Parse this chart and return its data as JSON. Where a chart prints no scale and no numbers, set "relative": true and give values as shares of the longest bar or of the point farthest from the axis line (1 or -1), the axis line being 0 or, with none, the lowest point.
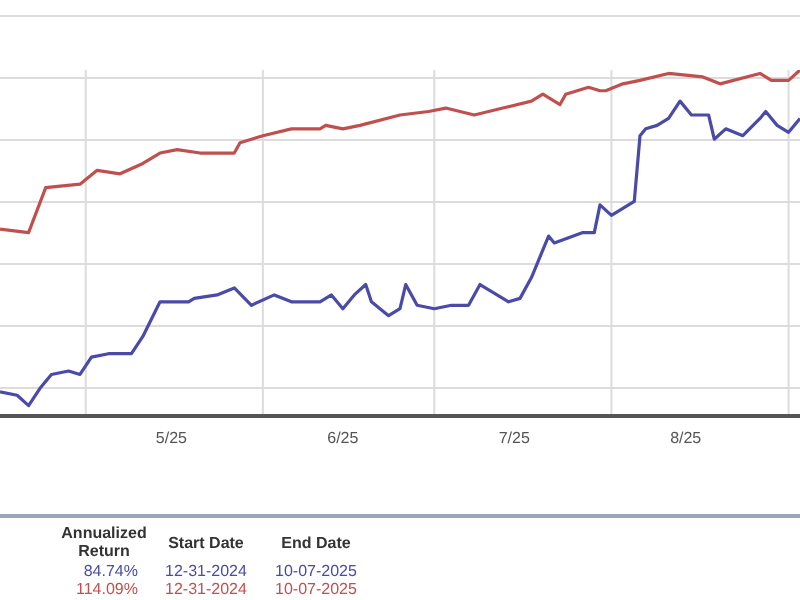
{
  "chart_data": {
    "type": "line",
    "relative": true,
    "grid": true,
    "legend": false,
    "marker": "none",
    "line_style": "solid",
    "xlim": [
      "2025-04-16",
      "2025-09-03"
    ],
    "xticks": [
      {
        "value": "2025-05-01",
        "label": null
      },
      {
        "value": "2025-05-16",
        "label": "5/25"
      },
      {
        "value": "2025-06-01",
        "label": null
      },
      {
        "value": "2025-06-15",
        "label": "6/25"
      },
      {
        "value": "2025-07-01",
        "label": null
      },
      {
        "value": "2025-07-15",
        "label": "7/25"
      },
      {
        "value": "2025-08-01",
        "label": null
      },
      {
        "value": "2025-08-14",
        "label": "8/25"
      },
      {
        "value": "2025-09-01",
        "label": null
      }
    ],
    "series": [
      {
        "color": "#4a4aa8",
        "x": [
          "2025-04-16",
          "2025-04-19",
          "2025-04-21",
          "2025-04-23",
          "2025-04-25",
          "2025-04-28",
          "2025-04-30",
          "2025-05-02",
          "2025-05-05",
          "2025-05-09",
          "2025-05-11",
          "2025-05-14",
          "2025-05-16",
          "2025-05-19",
          "2025-05-20",
          "2025-05-24",
          "2025-05-27",
          "2025-05-30",
          "2025-06-03",
          "2025-06-06",
          "2025-06-11",
          "2025-06-13",
          "2025-06-15",
          "2025-06-17",
          "2025-06-19",
          "2025-06-20",
          "2025-06-23",
          "2025-06-25",
          "2025-06-26",
          "2025-06-28",
          "2025-07-01",
          "2025-07-04",
          "2025-07-07",
          "2025-07-09",
          "2025-07-13",
          "2025-07-14",
          "2025-07-16",
          "2025-07-18",
          "2025-07-21",
          "2025-07-22",
          "2025-07-27",
          "2025-07-29",
          "2025-07-30",
          "2025-08-01",
          "2025-08-03",
          "2025-08-05",
          "2025-08-06",
          "2025-08-07",
          "2025-08-09",
          "2025-08-11",
          "2025-08-13",
          "2025-08-15",
          "2025-08-18",
          "2025-08-19",
          "2025-08-21",
          "2025-08-24",
          "2025-08-27",
          "2025-08-28",
          "2025-08-30",
          "2025-09-01",
          "2025-09-03"
        ],
        "values": [
          0.07,
          0.06,
          0.03,
          0.08,
          0.12,
          0.13,
          0.12,
          0.17,
          0.18,
          0.18,
          0.23,
          0.33,
          0.33,
          0.33,
          0.34,
          0.35,
          0.37,
          0.32,
          0.35,
          0.33,
          0.33,
          0.35,
          0.31,
          0.35,
          0.38,
          0.33,
          0.29,
          0.31,
          0.38,
          0.32,
          0.31,
          0.32,
          0.32,
          0.38,
          0.34,
          0.33,
          0.34,
          0.4,
          0.52,
          0.5,
          0.53,
          0.53,
          0.61,
          0.58,
          0.6,
          0.62,
          0.81,
          0.83,
          0.84,
          0.86,
          0.91,
          0.87,
          0.87,
          0.8,
          0.83,
          0.81,
          0.86,
          0.88,
          0.84,
          0.82,
          0.86
        ]
      },
      {
        "color": "#c0504d",
        "x": [
          "2025-04-16",
          "2025-04-21",
          "2025-04-24",
          "2025-04-30",
          "2025-05-03",
          "2025-05-07",
          "2025-05-11",
          "2025-05-14",
          "2025-05-17",
          "2025-05-21",
          "2025-05-27",
          "2025-05-28",
          "2025-06-01",
          "2025-06-06",
          "2025-06-11",
          "2025-06-12",
          "2025-06-15",
          "2025-06-18",
          "2025-06-25",
          "2025-06-30",
          "2025-07-03",
          "2025-07-08",
          "2025-07-13",
          "2025-07-18",
          "2025-07-20",
          "2025-07-22",
          "2025-07-23",
          "2025-07-24",
          "2025-07-28",
          "2025-07-30",
          "2025-07-31",
          "2025-08-03",
          "2025-08-06",
          "2025-08-11",
          "2025-08-17",
          "2025-08-20",
          "2025-08-27",
          "2025-08-29",
          "2025-09-01",
          "2025-09-03"
        ],
        "values": [
          0.54,
          0.53,
          0.66,
          0.67,
          0.71,
          0.7,
          0.73,
          0.76,
          0.77,
          0.76,
          0.76,
          0.79,
          0.81,
          0.83,
          0.83,
          0.84,
          0.83,
          0.84,
          0.87,
          0.88,
          0.89,
          0.87,
          0.89,
          0.91,
          0.93,
          0.91,
          0.9,
          0.93,
          0.95,
          0.94,
          0.94,
          0.96,
          0.97,
          0.99,
          0.98,
          0.96,
          0.99,
          0.97,
          0.97,
          1.0
        ]
      }
    ],
    "annotations": [
      "Annualized Return",
      "Start Date",
      "End Date",
      "84.74%",
      "12-31-2024",
      "10-07-2025",
      "114.09%",
      "12-31-2024",
      "10-07-2025"
    ]
  }
}
